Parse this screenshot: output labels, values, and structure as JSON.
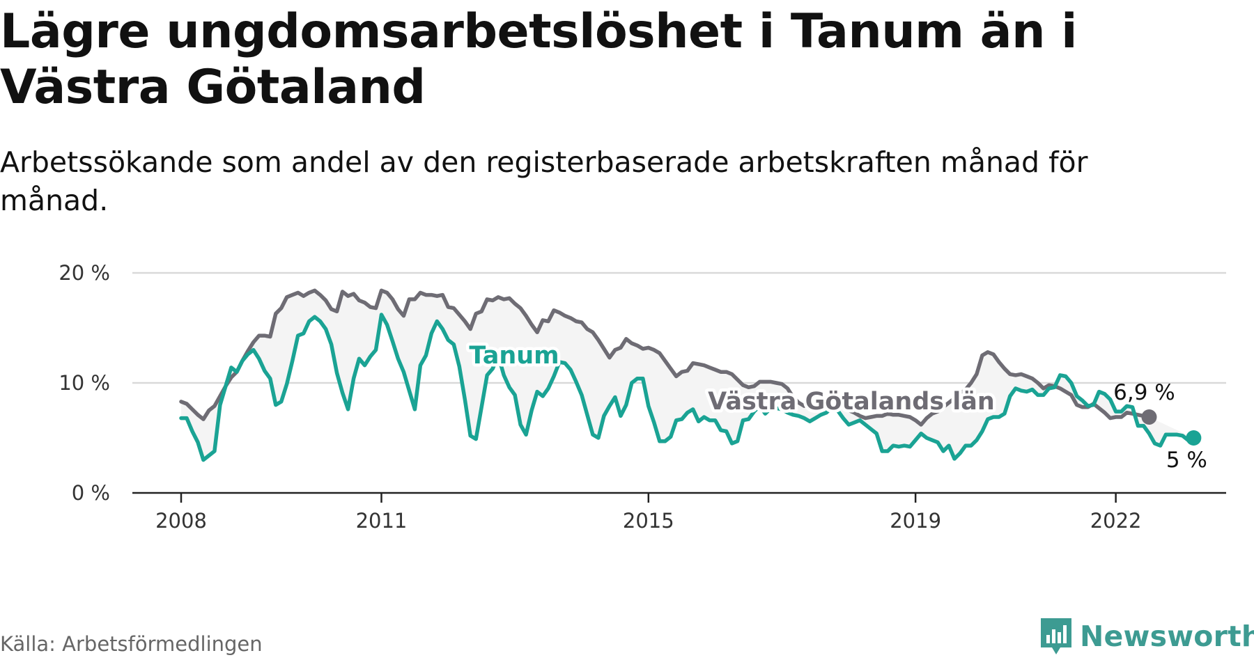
{
  "header": {
    "title": "Lägre ungdomsarbetslöshet i Tanum än i Västra Götaland",
    "subtitle": "Arbetssökande som andel av den registerbaserade arbetskraften månad för månad."
  },
  "footer": {
    "source": "Källa: Arbetsförmedlingen",
    "brand": "Newsworthy"
  },
  "colors": {
    "tanum": "#1aa394",
    "vastra": "#6e6c74",
    "band": "#f4f4f4",
    "grid": "#d9d9d9",
    "axis": "#222222",
    "brand": "#3d9b92"
  },
  "chart_data": {
    "type": "line",
    "title": "Lägre ungdomsarbetslöshet i Tanum än i Västra Götaland",
    "subtitle": "Arbetssökande som andel av den registerbaserade arbetskraften månad för månad.",
    "xlabel": "",
    "ylabel": "",
    "ylim": [
      0,
      20
    ],
    "y_ticks": [
      0,
      10,
      20
    ],
    "y_tick_labels": [
      "0 %",
      "10 %",
      "20 %"
    ],
    "x_ticks": [
      2008,
      2011,
      2015,
      2019,
      2022
    ],
    "x_tick_labels": [
      "2008",
      "2011",
      "2015",
      "2019",
      "2022"
    ],
    "x_start": 2008.0,
    "x_step": 0.08333,
    "grid": true,
    "series": [
      {
        "name": "Västra Götalands län",
        "label": "Västra Götalands län",
        "end_label": "6,9 %",
        "values": [
          8.3,
          8.1,
          7.6,
          7.1,
          6.7,
          7.5,
          7.9,
          8.8,
          9.7,
          10.5,
          11.0,
          12.0,
          12.9,
          13.7,
          14.3,
          14.3,
          14.2,
          16.3,
          16.8,
          17.8,
          18.0,
          18.2,
          17.9,
          18.2,
          18.4,
          18.0,
          17.5,
          16.7,
          16.5,
          18.3,
          17.9,
          18.1,
          17.5,
          17.3,
          16.9,
          16.8,
          18.4,
          18.2,
          17.6,
          16.7,
          16.1,
          17.6,
          17.6,
          18.2,
          18.0,
          18.0,
          17.9,
          18.0,
          16.9,
          16.8,
          16.2,
          15.6,
          14.9,
          16.3,
          16.5,
          17.6,
          17.5,
          17.8,
          17.6,
          17.7,
          17.2,
          16.8,
          16.1,
          15.3,
          14.6,
          15.7,
          15.6,
          16.6,
          16.4,
          16.1,
          15.9,
          15.6,
          15.5,
          14.9,
          14.6,
          13.9,
          13.1,
          12.3,
          13.0,
          13.2,
          14.0,
          13.6,
          13.4,
          13.1,
          13.2,
          13.0,
          12.7,
          12.0,
          11.3,
          10.6,
          11.0,
          11.1,
          11.8,
          11.7,
          11.6,
          11.4,
          11.2,
          11.0,
          11.0,
          10.8,
          10.3,
          9.8,
          9.6,
          9.7,
          10.1,
          10.1,
          10.1,
          10.0,
          9.9,
          9.5,
          8.7,
          8.2,
          7.9,
          8.4,
          8.6,
          8.7,
          8.4,
          8.2,
          8.3,
          8.0,
          7.5,
          7.3,
          7.0,
          6.8,
          6.9,
          7.0,
          7.0,
          7.2,
          7.1,
          7.1,
          7.0,
          6.9,
          6.6,
          6.2,
          6.8,
          7.2,
          7.4,
          7.8,
          8.2,
          8.6,
          9.0,
          9.4,
          10.0,
          10.8,
          12.5,
          12.8,
          12.6,
          11.9,
          11.3,
          10.8,
          10.7,
          10.8,
          10.6,
          10.4,
          10.0,
          9.5,
          9.8,
          9.7,
          9.5,
          9.2,
          8.9,
          8.0,
          7.8,
          7.8,
          8.1,
          7.7,
          7.3,
          6.8,
          6.9,
          6.9,
          7.3,
          7.2,
          7.1,
          7.0,
          6.9
        ],
        "color": "#6e6c74"
      },
      {
        "name": "Tanum",
        "label": "Tanum",
        "end_label": "5 %",
        "values": [
          6.8,
          6.8,
          5.6,
          4.6,
          3.0,
          3.4,
          3.8,
          8.0,
          9.7,
          11.4,
          11.0,
          12.0,
          12.6,
          13.0,
          12.2,
          11.1,
          10.4,
          8.0,
          8.3,
          9.9,
          12.0,
          14.3,
          14.5,
          15.6,
          16.0,
          15.6,
          14.9,
          13.5,
          10.9,
          9.1,
          7.6,
          10.4,
          12.2,
          11.6,
          12.4,
          13.0,
          16.2,
          15.3,
          13.8,
          12.2,
          11.0,
          9.3,
          7.6,
          11.6,
          12.5,
          14.5,
          15.6,
          14.9,
          13.9,
          13.5,
          11.5,
          8.5,
          5.2,
          4.9,
          7.8,
          10.7,
          11.3,
          12.5,
          10.7,
          9.6,
          8.9,
          6.2,
          5.3,
          7.5,
          9.2,
          8.8,
          9.5,
          10.6,
          11.9,
          11.8,
          11.2,
          10.1,
          8.9,
          7.1,
          5.3,
          5.0,
          7.0,
          7.9,
          8.7,
          7.0,
          8.0,
          10.0,
          10.4,
          10.4,
          7.9,
          6.4,
          4.7,
          4.7,
          5.1,
          6.6,
          6.7,
          7.3,
          7.6,
          6.5,
          6.9,
          6.6,
          6.6,
          5.7,
          5.6,
          4.5,
          4.7,
          6.6,
          6.7,
          7.4,
          7.9,
          7.2,
          7.7,
          7.7,
          7.6,
          7.3,
          7.1,
          7.0,
          6.8,
          6.5,
          6.8,
          7.1,
          7.3,
          7.8,
          7.5,
          6.8,
          6.2,
          6.4,
          6.6,
          6.2,
          5.8,
          5.4,
          3.8,
          3.8,
          4.3,
          4.2,
          4.3,
          4.2,
          4.8,
          5.4,
          5.0,
          4.8,
          4.6,
          3.8,
          4.3,
          3.1,
          3.6,
          4.3,
          4.3,
          4.8,
          5.6,
          6.7,
          6.9,
          6.9,
          7.2,
          8.8,
          9.5,
          9.3,
          9.2,
          9.4,
          8.9,
          8.9,
          9.5,
          9.6,
          10.7,
          10.6,
          10.0,
          8.8,
          8.4,
          7.9,
          8.0,
          9.2,
          9.0,
          8.5,
          7.4,
          7.4,
          7.9,
          7.8,
          6.1,
          6.1,
          5.4,
          4.5,
          4.3,
          5.3,
          5.3,
          5.3,
          5.2,
          4.8,
          5.0
        ],
        "color": "#1aa394"
      }
    ]
  }
}
